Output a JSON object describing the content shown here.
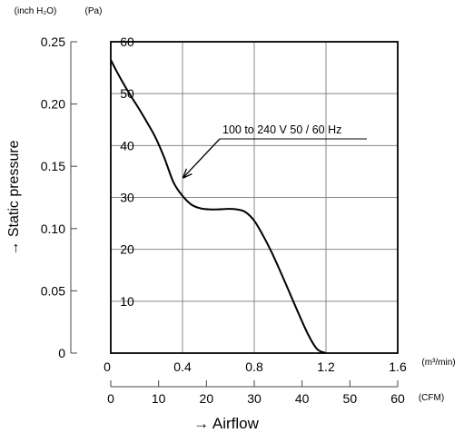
{
  "chart_data": {
    "type": "line",
    "title": "",
    "annotation": "100 to 240 V 50 / 60 Hz",
    "xlabel": "→  Airflow",
    "ylabel": "→  Static pressure",
    "x_unit_primary": "(m³/min)",
    "x_unit_secondary": "(CFM)",
    "y_unit_primary": "(Pa)",
    "y_unit_secondary": "(inch H₂O)",
    "xlim": [
      0,
      1.6
    ],
    "ylim": [
      0,
      60
    ],
    "x_ticks_primary": [
      {
        "value": 0,
        "label": "0"
      },
      {
        "value": 0.4,
        "label": "0.4"
      },
      {
        "value": 0.8,
        "label": "0.8"
      },
      {
        "value": 1.2,
        "label": "1.2"
      },
      {
        "value": 1.6,
        "label": "1.6"
      }
    ],
    "x_ticks_secondary": [
      {
        "value": 0,
        "label": "0"
      },
      {
        "value": 10,
        "label": "10"
      },
      {
        "value": 20,
        "label": "20"
      },
      {
        "value": 30,
        "label": "30"
      },
      {
        "value": 40,
        "label": "40"
      },
      {
        "value": 50,
        "label": "50"
      },
      {
        "value": 60,
        "label": "60"
      }
    ],
    "secondary_x_max": 60,
    "y_ticks_primary": [
      {
        "value": 10,
        "label": "10"
      },
      {
        "value": 20,
        "label": "20"
      },
      {
        "value": 30,
        "label": "30"
      },
      {
        "value": 40,
        "label": "40"
      },
      {
        "value": 50,
        "label": "50"
      },
      {
        "value": 60,
        "label": "60"
      }
    ],
    "y_ticks_secondary": [
      {
        "value": 0,
        "label": "0"
      },
      {
        "value": 0.05,
        "label": "0.05"
      },
      {
        "value": 0.1,
        "label": "0.10"
      },
      {
        "value": 0.15,
        "label": "0.15"
      },
      {
        "value": 0.2,
        "label": "0.20"
      },
      {
        "value": 0.25,
        "label": "0.25"
      }
    ],
    "secondary_y_max": 0.25,
    "grid": true,
    "series": [
      {
        "x": [
          0,
          0.05,
          0.1,
          0.15,
          0.2,
          0.25,
          0.3,
          0.35,
          0.4,
          0.45,
          0.5,
          0.55,
          0.6,
          0.65,
          0.7,
          0.75,
          0.8,
          0.85,
          0.9,
          0.95,
          1.0,
          1.05,
          1.1,
          1.15,
          1.2
        ],
        "y": [
          56.5,
          53.2,
          50.2,
          47.5,
          44.6,
          41.5,
          37.5,
          32.9,
          30.3,
          28.6,
          27.9,
          27.7,
          27.7,
          27.8,
          27.7,
          27.2,
          25.5,
          22.6,
          19.2,
          15.4,
          11.4,
          7.4,
          3.6,
          0.8,
          0
        ]
      }
    ],
    "annotation_arrow_target": {
      "x": 0.395,
      "y": 33.5
    }
  },
  "colors": {
    "curve": "#000000",
    "frame": "#000000",
    "grid": "#888888",
    "secondary_axis": "#444444",
    "text": "#000000"
  }
}
